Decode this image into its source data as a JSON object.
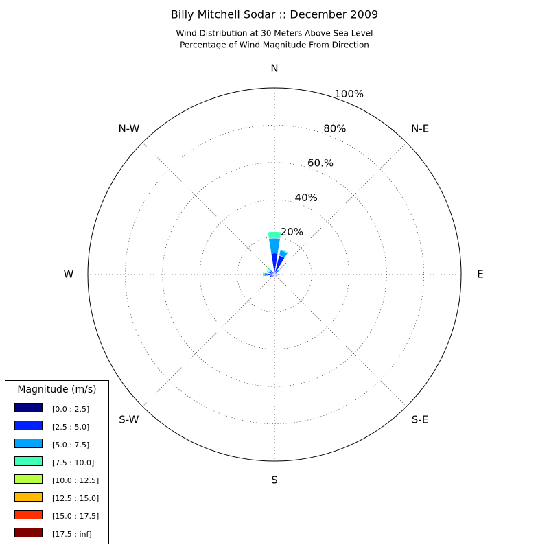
{
  "chart_data": {
    "type": "windrose",
    "title": "Billy Mitchell Sodar :: December 2009",
    "subtitle": [
      "Wind Distribution at 30 Meters Above Sea Level",
      "Percentage of Wind Magnitude From Direction"
    ],
    "categories": [
      "N",
      null,
      "N-E",
      null,
      "E",
      null,
      "S-E",
      null,
      "S",
      null,
      "S-W",
      null,
      "W",
      null,
      "N-W",
      null
    ],
    "rlim": [
      0,
      100
    ],
    "rticks": [
      {
        "value": 20,
        "label": "20%"
      },
      {
        "value": 40,
        "label": "40%"
      },
      {
        "value": 60,
        "label": "60.%"
      },
      {
        "value": 80,
        "label": "80%"
      },
      {
        "value": 100,
        "label": "100%"
      }
    ],
    "grid": true,
    "legend_title": "Magnitude (m/s)",
    "legend": "lower left",
    "series": [
      {
        "name": "[0.0 : 2.5]",
        "color": "#000080",
        "values": [
          0.5,
          0.5,
          0.5,
          0.5,
          0.5,
          0.5,
          0.5,
          0.5,
          0.5,
          0.5,
          0.5,
          0.5,
          0.5,
          0.5,
          0.5,
          0.5
        ]
      },
      {
        "name": "[2.5 : 5.0]",
        "color": "#0020ff",
        "values": [
          11,
          10,
          2,
          1,
          1,
          1,
          0.5,
          0.5,
          1,
          0.5,
          1,
          2,
          3,
          2,
          2,
          1
        ]
      },
      {
        "name": "[5.0 : 7.5]",
        "color": "#00a4ff",
        "values": [
          8,
          3,
          1,
          0.3,
          1,
          0.3,
          0.3,
          0.3,
          0.3,
          0.3,
          0.3,
          0.3,
          2,
          1,
          1,
          0.3
        ]
      },
      {
        "name": "[7.5 : 10.0]",
        "color": "#40ffb7",
        "values": [
          3.5,
          0.5,
          0,
          0,
          0,
          0,
          0,
          0,
          0,
          0,
          0,
          0,
          1,
          1,
          1.5,
          0
        ]
      },
      {
        "name": "[10.0 : 12.5]",
        "color": "#b7ff40",
        "values": [
          0,
          0,
          0,
          0,
          0,
          0,
          0,
          0,
          0,
          0,
          0,
          0,
          0,
          0,
          0.5,
          0
        ]
      },
      {
        "name": "[12.5 : 15.0]",
        "color": "#ffb900",
        "values": [
          0,
          0,
          0,
          0,
          0,
          0,
          0,
          0,
          0,
          0,
          0,
          0,
          0,
          0,
          0,
          0
        ]
      },
      {
        "name": "[15.0 : 17.5]",
        "color": "#ff3000",
        "values": [
          0,
          0,
          0,
          0,
          0,
          0,
          0,
          0,
          1,
          0,
          0,
          0,
          0,
          0,
          0,
          0
        ]
      },
      {
        "name": "[17.5 : inf]",
        "color": "#800000",
        "values": [
          0,
          0,
          0,
          0,
          0,
          0,
          0,
          0,
          0,
          0,
          0,
          0,
          0,
          0,
          0,
          0
        ]
      }
    ]
  }
}
